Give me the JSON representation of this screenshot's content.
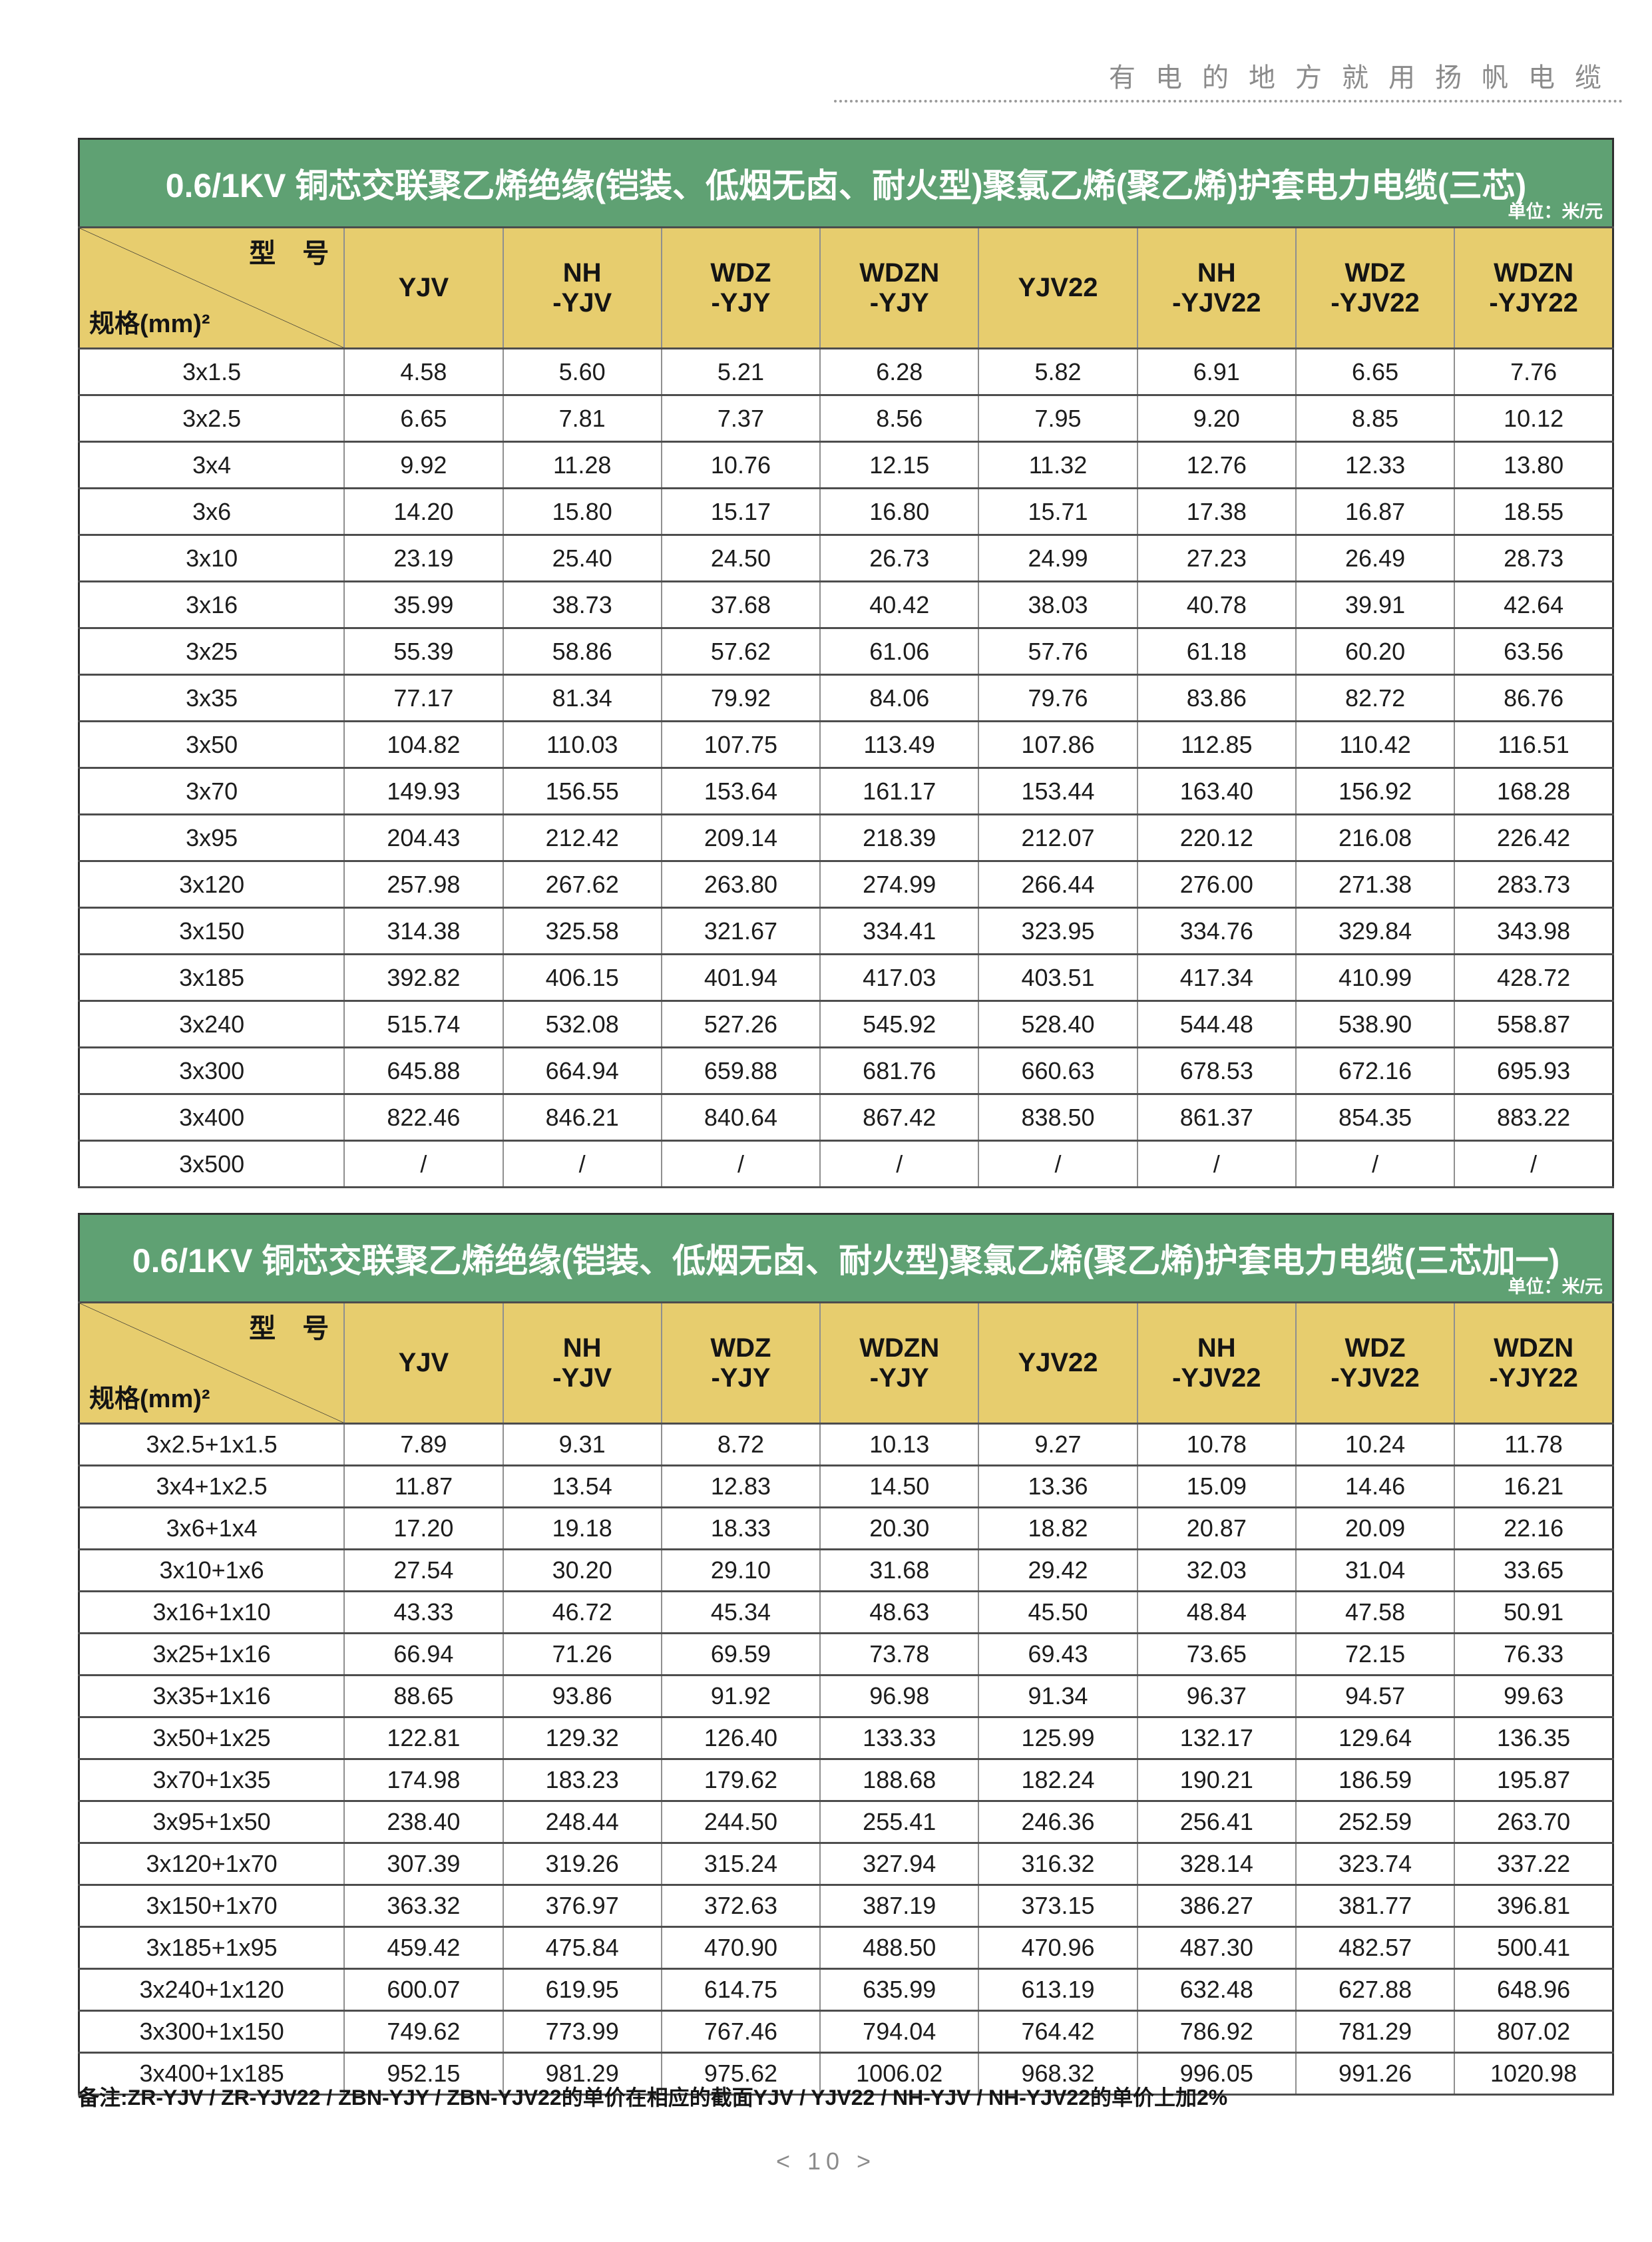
{
  "page_header": {
    "slogan": "有电的地方就用扬帆电缆"
  },
  "colors": {
    "banner_green": "#5fa173",
    "header_yellow": "#e7cd6e",
    "slogan_gray": "#8b8b8b"
  },
  "tables": [
    {
      "title": "0.6/1KV 铜芯交联聚乙烯绝缘(铠装、低烟无卤、耐火型)聚氯乙烯(聚乙烯)护套电力电缆(三芯)",
      "unit_label": "单位：米/元",
      "corner": {
        "top_right": "型　号",
        "bottom_left": "规格(mm)²"
      },
      "columns": [
        "YJV",
        "NH\n-YJV",
        "WDZ\n-YJY",
        "WDZN\n-YJY",
        "YJV22",
        "NH\n-YJV22",
        "WDZ\n-YJV22",
        "WDZN\n-YJY22"
      ],
      "rows": [
        {
          "spec": "3x1.5",
          "values": [
            "4.58",
            "5.60",
            "5.21",
            "6.28",
            "5.82",
            "6.91",
            "6.65",
            "7.76"
          ]
        },
        {
          "spec": "3x2.5",
          "values": [
            "6.65",
            "7.81",
            "7.37",
            "8.56",
            "7.95",
            "9.20",
            "8.85",
            "10.12"
          ]
        },
        {
          "spec": "3x4",
          "values": [
            "9.92",
            "11.28",
            "10.76",
            "12.15",
            "11.32",
            "12.76",
            "12.33",
            "13.80"
          ]
        },
        {
          "spec": "3x6",
          "values": [
            "14.20",
            "15.80",
            "15.17",
            "16.80",
            "15.71",
            "17.38",
            "16.87",
            "18.55"
          ]
        },
        {
          "spec": "3x10",
          "values": [
            "23.19",
            "25.40",
            "24.50",
            "26.73",
            "24.99",
            "27.23",
            "26.49",
            "28.73"
          ]
        },
        {
          "spec": "3x16",
          "values": [
            "35.99",
            "38.73",
            "37.68",
            "40.42",
            "38.03",
            "40.78",
            "39.91",
            "42.64"
          ]
        },
        {
          "spec": "3x25",
          "values": [
            "55.39",
            "58.86",
            "57.62",
            "61.06",
            "57.76",
            "61.18",
            "60.20",
            "63.56"
          ]
        },
        {
          "spec": "3x35",
          "values": [
            "77.17",
            "81.34",
            "79.92",
            "84.06",
            "79.76",
            "83.86",
            "82.72",
            "86.76"
          ]
        },
        {
          "spec": "3x50",
          "values": [
            "104.82",
            "110.03",
            "107.75",
            "113.49",
            "107.86",
            "112.85",
            "110.42",
            "116.51"
          ]
        },
        {
          "spec": "3x70",
          "values": [
            "149.93",
            "156.55",
            "153.64",
            "161.17",
            "153.44",
            "163.40",
            "156.92",
            "168.28"
          ]
        },
        {
          "spec": "3x95",
          "values": [
            "204.43",
            "212.42",
            "209.14",
            "218.39",
            "212.07",
            "220.12",
            "216.08",
            "226.42"
          ]
        },
        {
          "spec": "3x120",
          "values": [
            "257.98",
            "267.62",
            "263.80",
            "274.99",
            "266.44",
            "276.00",
            "271.38",
            "283.73"
          ]
        },
        {
          "spec": "3x150",
          "values": [
            "314.38",
            "325.58",
            "321.67",
            "334.41",
            "323.95",
            "334.76",
            "329.84",
            "343.98"
          ]
        },
        {
          "spec": "3x185",
          "values": [
            "392.82",
            "406.15",
            "401.94",
            "417.03",
            "403.51",
            "417.34",
            "410.99",
            "428.72"
          ]
        },
        {
          "spec": "3x240",
          "values": [
            "515.74",
            "532.08",
            "527.26",
            "545.92",
            "528.40",
            "544.48",
            "538.90",
            "558.87"
          ]
        },
        {
          "spec": "3x300",
          "values": [
            "645.88",
            "664.94",
            "659.88",
            "681.76",
            "660.63",
            "678.53",
            "672.16",
            "695.93"
          ]
        },
        {
          "spec": "3x400",
          "values": [
            "822.46",
            "846.21",
            "840.64",
            "867.42",
            "838.50",
            "861.37",
            "854.35",
            "883.22"
          ]
        },
        {
          "spec": "3x500",
          "values": [
            "/",
            "/",
            "/",
            "/",
            "/",
            "/",
            "/",
            "/"
          ]
        }
      ]
    },
    {
      "title": "0.6/1KV 铜芯交联聚乙烯绝缘(铠装、低烟无卤、耐火型)聚氯乙烯(聚乙烯)护套电力电缆(三芯加一)",
      "unit_label": "单位：米/元",
      "corner": {
        "top_right": "型　号",
        "bottom_left": "规格(mm)²"
      },
      "columns": [
        "YJV",
        "NH\n-YJV",
        "WDZ\n-YJY",
        "WDZN\n-YJY",
        "YJV22",
        "NH\n-YJV22",
        "WDZ\n-YJV22",
        "WDZN\n-YJY22"
      ],
      "rows": [
        {
          "spec": "3x2.5+1x1.5",
          "values": [
            "7.89",
            "9.31",
            "8.72",
            "10.13",
            "9.27",
            "10.78",
            "10.24",
            "11.78"
          ]
        },
        {
          "spec": "3x4+1x2.5",
          "values": [
            "11.87",
            "13.54",
            "12.83",
            "14.50",
            "13.36",
            "15.09",
            "14.46",
            "16.21"
          ]
        },
        {
          "spec": "3x6+1x4",
          "values": [
            "17.20",
            "19.18",
            "18.33",
            "20.30",
            "18.82",
            "20.87",
            "20.09",
            "22.16"
          ]
        },
        {
          "spec": "3x10+1x6",
          "values": [
            "27.54",
            "30.20",
            "29.10",
            "31.68",
            "29.42",
            "32.03",
            "31.04",
            "33.65"
          ]
        },
        {
          "spec": "3x16+1x10",
          "values": [
            "43.33",
            "46.72",
            "45.34",
            "48.63",
            "45.50",
            "48.84",
            "47.58",
            "50.91"
          ]
        },
        {
          "spec": "3x25+1x16",
          "values": [
            "66.94",
            "71.26",
            "69.59",
            "73.78",
            "69.43",
            "73.65",
            "72.15",
            "76.33"
          ]
        },
        {
          "spec": "3x35+1x16",
          "values": [
            "88.65",
            "93.86",
            "91.92",
            "96.98",
            "91.34",
            "96.37",
            "94.57",
            "99.63"
          ]
        },
        {
          "spec": "3x50+1x25",
          "values": [
            "122.81",
            "129.32",
            "126.40",
            "133.33",
            "125.99",
            "132.17",
            "129.64",
            "136.35"
          ]
        },
        {
          "spec": "3x70+1x35",
          "values": [
            "174.98",
            "183.23",
            "179.62",
            "188.68",
            "182.24",
            "190.21",
            "186.59",
            "195.87"
          ]
        },
        {
          "spec": "3x95+1x50",
          "values": [
            "238.40",
            "248.44",
            "244.50",
            "255.41",
            "246.36",
            "256.41",
            "252.59",
            "263.70"
          ]
        },
        {
          "spec": "3x120+1x70",
          "values": [
            "307.39",
            "319.26",
            "315.24",
            "327.94",
            "316.32",
            "328.14",
            "323.74",
            "337.22"
          ]
        },
        {
          "spec": "3x150+1x70",
          "values": [
            "363.32",
            "376.97",
            "372.63",
            "387.19",
            "373.15",
            "386.27",
            "381.77",
            "396.81"
          ]
        },
        {
          "spec": "3x185+1x95",
          "values": [
            "459.42",
            "475.84",
            "470.90",
            "488.50",
            "470.96",
            "487.30",
            "482.57",
            "500.41"
          ]
        },
        {
          "spec": "3x240+1x120",
          "values": [
            "600.07",
            "619.95",
            "614.75",
            "635.99",
            "613.19",
            "632.48",
            "627.88",
            "648.96"
          ]
        },
        {
          "spec": "3x300+1x150",
          "values": [
            "749.62",
            "773.99",
            "767.46",
            "794.04",
            "764.42",
            "786.92",
            "781.29",
            "807.02"
          ]
        },
        {
          "spec": "3x400+1x185",
          "values": [
            "952.15",
            "981.29",
            "975.62",
            "1006.02",
            "968.32",
            "996.05",
            "991.26",
            "1020.98"
          ]
        }
      ]
    }
  ],
  "footer_note": "备注:ZR-YJV / ZR-YJV22 / ZBN-YJY / ZBN-YJV22的单价在相应的截面YJV / YJV22 / NH-YJV / NH-YJV22的单价上加2%",
  "page_number": "< 10 >"
}
